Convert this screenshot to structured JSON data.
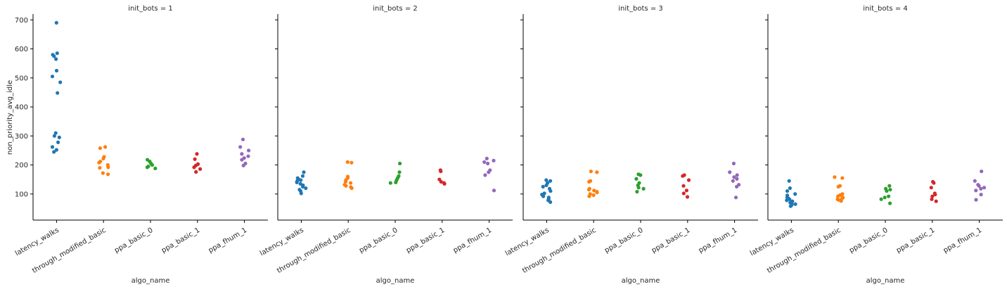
{
  "chart_data": {
    "type": "scatter",
    "kind": "strip",
    "ylabel": "non_priority_avg_idle",
    "xlabel": "algo_name",
    "ylim": [
      10,
      720
    ],
    "yticks": [
      100,
      200,
      300,
      400,
      500,
      600,
      700
    ],
    "categories": [
      "latency_walks",
      "through_modified_basic",
      "ppa_basic_0",
      "ppa_basic_1",
      "ppa_fhum_1"
    ],
    "palette": [
      "#1f77b4",
      "#ff7f0e",
      "#2ca02c",
      "#d62728",
      "#9467bd"
    ],
    "panels": [
      {
        "title": "init_bots = 1",
        "points": [
          [
            690,
            585,
            580,
            575,
            565,
            525,
            505,
            485,
            448,
            310,
            300,
            295,
            278,
            262,
            252,
            245
          ],
          [
            262,
            258,
            228,
            222,
            212,
            208,
            200,
            192,
            190,
            172,
            168
          ],
          [
            218,
            212,
            205,
            200,
            195,
            192,
            188
          ],
          [
            238,
            220,
            203,
            198,
            192,
            186,
            176
          ],
          [
            288,
            262,
            250,
            238,
            230,
            224,
            218,
            205,
            198
          ]
        ]
      },
      {
        "title": "init_bots = 2",
        "points": [
          [
            175,
            162,
            155,
            150,
            148,
            145,
            140,
            135,
            130,
            125,
            120,
            115,
            110,
            102
          ],
          [
            210,
            208,
            160,
            155,
            148,
            142,
            138,
            132,
            128,
            124,
            120
          ],
          [
            205,
            175,
            162,
            155,
            148,
            140,
            138
          ],
          [
            182,
            178,
            150,
            142,
            138,
            135
          ],
          [
            222,
            215,
            210,
            205,
            182,
            175,
            165,
            112
          ]
        ]
      },
      {
        "title": "init_bots = 3",
        "points": [
          [
            148,
            145,
            138,
            130,
            125,
            118,
            110,
            102,
            98,
            92,
            88,
            82,
            78,
            72
          ],
          [
            178,
            175,
            145,
            142,
            118,
            115,
            112,
            108,
            105,
            100,
            96,
            92
          ],
          [
            168,
            165,
            152,
            138,
            130,
            122,
            118,
            108
          ],
          [
            165,
            162,
            148,
            128,
            112,
            102,
            90
          ],
          [
            205,
            175,
            165,
            158,
            152,
            145,
            132,
            125,
            88
          ]
        ]
      },
      {
        "title": "init_bots = 4",
        "points": [
          [
            145,
            120,
            110,
            100,
            95,
            88,
            85,
            82,
            78,
            75,
            72,
            70,
            68,
            65,
            62,
            58
          ],
          [
            158,
            155,
            128,
            125,
            100,
            96,
            92,
            88,
            85,
            82,
            80,
            78,
            76
          ],
          [
            128,
            118,
            115,
            110,
            92,
            88,
            82,
            68
          ],
          [
            142,
            138,
            122,
            102,
            98,
            92,
            82,
            75
          ],
          [
            178,
            145,
            132,
            128,
            122,
            118,
            112,
            98,
            80
          ]
        ]
      }
    ]
  }
}
